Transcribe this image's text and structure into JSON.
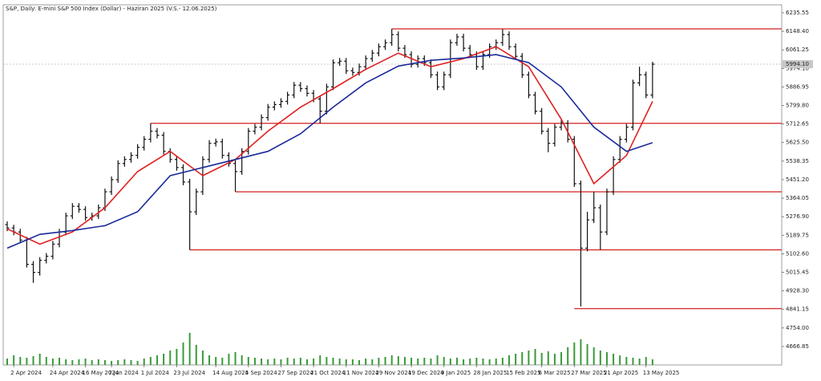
{
  "chart_data": {
    "type": "candlestick",
    "title": "S&P, Daily: E-mini S&P 500 Index (Dollar) - Haziran 2025 (V.S.- 12.06.2025)",
    "categories": [
      null,
      "2 Apr 2024",
      null,
      null,
      null,
      null,
      null,
      "24 Apr 2024",
      null,
      null,
      null,
      null,
      "16 May 2024",
      null,
      null,
      null,
      "7 Jun 2024",
      null,
      null,
      null,
      null,
      "1 Jul 2024",
      null,
      null,
      null,
      null,
      "23 Jul 2024",
      null,
      null,
      null,
      null,
      null,
      "14 Aug 2024",
      null,
      null,
      null,
      null,
      "5 Sep 2024",
      null,
      null,
      null,
      null,
      "27 Sep 2024",
      null,
      null,
      null,
      null,
      "21 Oct 2024",
      null,
      null,
      null,
      null,
      "11 Nov 2024",
      null,
      null,
      null,
      null,
      "29 Nov 2024",
      null,
      null,
      null,
      null,
      "19 Dec 2024",
      null,
      null,
      null,
      null,
      "9 Jan 2025",
      null,
      null,
      null,
      null,
      "28 Jan 2025",
      null,
      null,
      null,
      null,
      "15 Feb 2025",
      null,
      null,
      null,
      null,
      "6 Mar 2025",
      null,
      null,
      null,
      null,
      "27 Mar 2025",
      null,
      null,
      null,
      null,
      "21 Apr 2025",
      null,
      null,
      null,
      null,
      null,
      "13 May 2025",
      null
    ],
    "open": [
      5240,
      5224,
      5205,
      5167,
      5053,
      5015,
      5072,
      5091,
      5148,
      5205,
      5281,
      5326,
      5311,
      5273,
      5281,
      5319,
      5394,
      5451,
      5527,
      5546,
      5565,
      5603,
      5641,
      5679,
      5660,
      5584,
      5546,
      5508,
      5440,
      5300,
      5394,
      5546,
      5622,
      5629,
      5565,
      5527,
      5489,
      5584,
      5679,
      5698,
      5743,
      5792,
      5804,
      5819,
      5849,
      5895,
      5879,
      5857,
      5830,
      5773,
      5887,
      6001,
      6008,
      5963,
      5955,
      5982,
      6020,
      6046,
      6076,
      6095,
      6133,
      6069,
      6039,
      5993,
      6020,
      6001,
      5944,
      5887,
      5944,
      6095,
      6122,
      6069,
      6039,
      5982,
      6039,
      6076,
      6095,
      6133,
      6076,
      6031,
      5944,
      5849,
      5773,
      5679,
      5622,
      5698,
      5716,
      5641,
      5432,
      5129,
      5262,
      5319,
      5205,
      5394,
      5546,
      5641,
      5698,
      5906,
      5944,
      5849
    ],
    "high": [
      5255,
      5239,
      5220,
      5182,
      5068,
      5087,
      5106,
      5163,
      5220,
      5296,
      5341,
      5341,
      5326,
      5296,
      5334,
      5409,
      5466,
      5542,
      5561,
      5580,
      5618,
      5656,
      5716,
      5694,
      5675,
      5599,
      5561,
      5523,
      5455,
      5409,
      5561,
      5637,
      5644,
      5644,
      5580,
      5542,
      5599,
      5694,
      5713,
      5758,
      5807,
      5819,
      5834,
      5864,
      5910,
      5910,
      5894,
      5872,
      5845,
      5902,
      6016,
      6023,
      6023,
      5978,
      5997,
      6035,
      6061,
      6091,
      6110,
      6160,
      6148,
      6084,
      6054,
      6035,
      6035,
      6016,
      5959,
      5959,
      6110,
      6137,
      6137,
      6084,
      6054,
      6054,
      6091,
      6110,
      6158,
      6148,
      6091,
      6046,
      5959,
      5864,
      5788,
      5694,
      5713,
      5731,
      5731,
      5656,
      5447,
      5300,
      5394,
      5334,
      5409,
      5561,
      5656,
      5713,
      5921,
      5982,
      5959,
      6005
    ],
    "low": [
      5209,
      5190,
      5152,
      5038,
      4966,
      5000,
      5057,
      5076,
      5133,
      5190,
      5266,
      5296,
      5258,
      5258,
      5266,
      5304,
      5379,
      5436,
      5512,
      5531,
      5550,
      5588,
      5626,
      5645,
      5569,
      5531,
      5493,
      5425,
      5121,
      5285,
      5379,
      5531,
      5607,
      5550,
      5512,
      5394,
      5474,
      5569,
      5664,
      5683,
      5728,
      5777,
      5789,
      5804,
      5834,
      5864,
      5842,
      5815,
      5716,
      5758,
      5872,
      5986,
      5948,
      5940,
      5940,
      5967,
      6005,
      6031,
      6061,
      6080,
      6054,
      6024,
      5978,
      5978,
      5986,
      5929,
      5872,
      5872,
      5929,
      6080,
      6054,
      6024,
      5967,
      5967,
      6024,
      6061,
      6080,
      6061,
      6016,
      5929,
      5834,
      5758,
      5664,
      5580,
      5607,
      5683,
      5626,
      5417,
      4855,
      5114,
      5247,
      5121,
      5190,
      5379,
      5531,
      5626,
      5683,
      5891,
      5834,
      5834
    ],
    "close": [
      5224,
      5205,
      5167,
      5053,
      5015,
      5072,
      5091,
      5148,
      5205,
      5281,
      5326,
      5311,
      5273,
      5281,
      5319,
      5394,
      5451,
      5527,
      5546,
      5565,
      5603,
      5641,
      5679,
      5660,
      5584,
      5546,
      5508,
      5440,
      5300,
      5394,
      5546,
      5622,
      5629,
      5565,
      5527,
      5489,
      5584,
      5679,
      5698,
      5743,
      5792,
      5804,
      5819,
      5849,
      5895,
      5879,
      5857,
      5830,
      5773,
      5887,
      6001,
      6008,
      5963,
      5955,
      5982,
      6020,
      6046,
      6076,
      6095,
      6133,
      6069,
      6039,
      5993,
      6020,
      6001,
      5944,
      5887,
      5944,
      6095,
      6122,
      6069,
      6039,
      5982,
      6039,
      6076,
      6095,
      6133,
      6076,
      6031,
      5944,
      5849,
      5773,
      5679,
      5622,
      5698,
      5716,
      5641,
      5432,
      5129,
      5262,
      5319,
      5205,
      5394,
      5546,
      5641,
      5698,
      5906,
      5944,
      5849,
      5994
    ],
    "volume": [
      8,
      12,
      10,
      9,
      11,
      14,
      10,
      8,
      9,
      7,
      6,
      7,
      8,
      6,
      7,
      6,
      5,
      6,
      7,
      6,
      5,
      8,
      10,
      12,
      14,
      18,
      20,
      28,
      40,
      25,
      18,
      12,
      10,
      9,
      14,
      16,
      12,
      10,
      9,
      8,
      7,
      8,
      7,
      9,
      8,
      9,
      7,
      8,
      12,
      10,
      9,
      8,
      7,
      7,
      6,
      8,
      7,
      9,
      10,
      12,
      11,
      10,
      9,
      8,
      9,
      8,
      12,
      10,
      8,
      9,
      7,
      8,
      9,
      8,
      7,
      8,
      9,
      12,
      14,
      16,
      18,
      20,
      15,
      17,
      14,
      16,
      22,
      28,
      32,
      26,
      22,
      18,
      16,
      14,
      12,
      10,
      9,
      8,
      10,
      7
    ],
    "bar_color": "#111111",
    "volume_color": "#3a9a3a",
    "lines": [
      {
        "color": "#e02020",
        "x": [
          0,
          5,
          10,
          15,
          20,
          25,
          30,
          35,
          40,
          45,
          50,
          55,
          60,
          65,
          70,
          75,
          80,
          85,
          90,
          95,
          99
        ],
        "values": [
          5220,
          5148,
          5205,
          5319,
          5489,
          5584,
          5470,
          5546,
          5679,
          5792,
          5879,
          5970,
          6046,
          5982,
          6020,
          6076,
          5982,
          5735,
          5432,
          5565,
          5819
        ]
      },
      {
        "color": "#1a2a9a",
        "x": [
          0,
          5,
          10,
          15,
          20,
          25,
          30,
          35,
          40,
          45,
          50,
          55,
          60,
          65,
          70,
          75,
          80,
          85,
          90,
          95,
          99
        ],
        "values": [
          5129,
          5194,
          5212,
          5235,
          5300,
          5470,
          5508,
          5546,
          5584,
          5667,
          5792,
          5906,
          5985,
          6012,
          6023,
          6039,
          6001,
          5887,
          5698,
          5584,
          5625
        ]
      }
    ],
    "levels": [
      {
        "value": 6160,
        "x": 59,
        "color": "#d42020"
      },
      {
        "value": 5716,
        "x": 22,
        "color": "#d42020"
      },
      {
        "value": 5394,
        "x": 35,
        "color": "#d42020"
      },
      {
        "value": 5121,
        "x": 28,
        "color": "#d42020"
      },
      {
        "value": 4845,
        "x": 87,
        "color": "#d42020"
      }
    ],
    "last_price": {
      "value": 5994.1,
      "label": "5994.10"
    },
    "ylim": [
      4580,
      6273
    ],
    "yticks": [
      6235.55,
      {
        "value": 6148.4,
        "label": "6148.40"
      },
      6061.25,
      {
        "value": 5974.1,
        "label": "5974.10"
      },
      5886.95,
      {
        "value": 5799.8,
        "label": "5799.80"
      },
      5712.65,
      {
        "value": 5625.5,
        "label": "5625.50"
      },
      5538.35,
      {
        "value": 5451.2,
        "label": "5451.20"
      },
      5364.05,
      {
        "value": 5276.9,
        "label": "5276.90"
      },
      5189.75,
      {
        "value": 5102.6,
        "label": "5102.60"
      },
      5015.45,
      {
        "value": 4928.3,
        "label": "4928.30"
      },
      4841.15,
      {
        "value": 4754,
        "label": "4754.00"
      },
      4666.85
    ]
  }
}
